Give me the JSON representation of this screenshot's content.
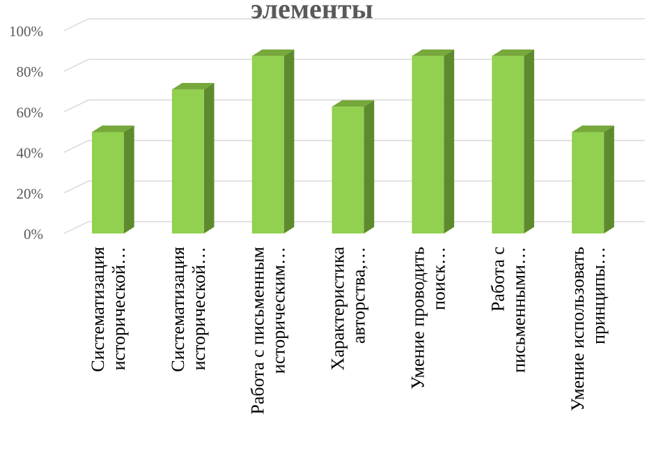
{
  "chart_data": {
    "type": "bar",
    "title": "элементы",
    "xlabel": "",
    "ylabel": "",
    "ylim": [
      0,
      1
    ],
    "y_ticks": [
      "0%",
      "20%",
      "40%",
      "60%",
      "80%",
      "100%"
    ],
    "y_tick_values": [
      0,
      0.2,
      0.4,
      0.6,
      0.8,
      1.0
    ],
    "grid": true,
    "style": "3d-column",
    "colors": {
      "bar_front": "#92d050",
      "bar_side": "#5e8a2e",
      "bar_top": "#77a83c",
      "grid": "#d9d9d9"
    },
    "categories": [
      [
        "Систематизация",
        "исторической…"
      ],
      [
        "Систематизация",
        "исторической…"
      ],
      [
        "Работа с письменным",
        "историческим…"
      ],
      [
        "Характеристика",
        "авторства,…"
      ],
      [
        "Умение проводить",
        "поиск…"
      ],
      [
        "Работа с",
        "письменными…"
      ],
      [
        "Умение использовать",
        "принципы…"
      ]
    ],
    "values": [
      0.5,
      0.71,
      0.875,
      0.625,
      0.875,
      0.875,
      0.5
    ]
  }
}
